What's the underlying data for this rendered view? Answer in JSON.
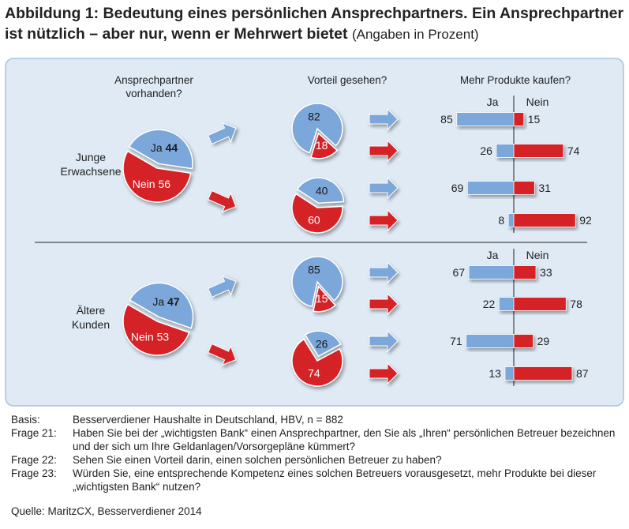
{
  "figure": {
    "title_bold": "Abbildung 1: Bedeutung eines persönlichen Ansprechpartners. Ein Ansprechpartner ist nützlich – aber nur, wenn er Mehrwert bietet",
    "title_suffix": "(Angaben in Prozent)"
  },
  "colors": {
    "ja": "#7ba7da",
    "nein": "#d42027",
    "panel": "#dfeaf5",
    "border": "#a9c3dc"
  },
  "headers": {
    "col1": [
      "Ansprechpartner",
      "vorhanden?"
    ],
    "col2": "Vorteil gesehen?",
    "col3": "Mehr Produkte kaufen?"
  },
  "chart_data": {
    "type": "pie-and-bar",
    "groups": [
      {
        "label": [
          "Junge",
          "Erwachsene"
        ],
        "ansprechpartner": {
          "ja_label": "Ja",
          "ja": 44,
          "nein_label": "Nein",
          "nein": 56
        },
        "vorteil": [
          {
            "ja": 82,
            "nein": 18
          },
          {
            "ja": 40,
            "nein": 60
          }
        ],
        "kaufen_header": {
          "ja": "Ja",
          "nein": "Nein"
        },
        "kaufen": [
          {
            "ja": 85,
            "nein": 15
          },
          {
            "ja": 26,
            "nein": 74
          },
          {
            "ja": 69,
            "nein": 31
          },
          {
            "ja": 8,
            "nein": 92
          }
        ]
      },
      {
        "label": [
          "Ältere",
          "Kunden"
        ],
        "ansprechpartner": {
          "ja_label": "Ja",
          "ja": 47,
          "nein_label": "Nein",
          "nein": 53
        },
        "vorteil": [
          {
            "ja": 85,
            "nein": 15
          },
          {
            "ja": 26,
            "nein": 74
          }
        ],
        "kaufen_header": {
          "ja": "Ja",
          "nein": "Nein"
        },
        "kaufen": [
          {
            "ja": 67,
            "nein": 33
          },
          {
            "ja": 22,
            "nein": 78
          },
          {
            "ja": 71,
            "nein": 29
          },
          {
            "ja": 13,
            "nein": 87
          }
        ]
      }
    ]
  },
  "notes": [
    {
      "label": "Basis:",
      "text": "Besserverdiener Haushalte in Deutschland, HBV, n = 882"
    },
    {
      "label": "Frage 21:",
      "text": "Haben Sie bei der „wichtigsten Bank“ einen Ansprechpartner, den Sie als „Ihren“ persönlichen Betreuer bezeichnen und der sich um Ihre Geldanlagen/Vorsorgepläne kümmert?"
    },
    {
      "label": "Frage 22:",
      "text": "Sehen Sie einen Vorteil darin, einen solchen persönlichen Betreuer zu haben?"
    },
    {
      "label": "Frage 23:",
      "text": "Würden Sie, eine entsprechende Kompetenz eines solchen Betreuers vorausgesetzt, mehr Produkte bei dieser „wichtigsten Bank“ nutzen?"
    }
  ],
  "source": "Quelle: MaritzCX, Besserverdiener 2014"
}
